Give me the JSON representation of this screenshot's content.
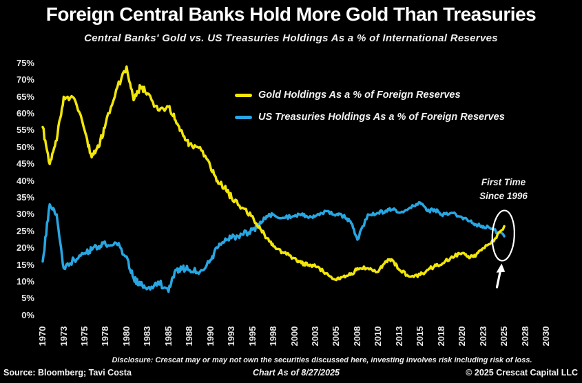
{
  "page": {
    "title": "Foreign Central Banks Hold More Gold Than Treasuries",
    "subtitle": "Central Banks' Gold vs. US Treasuries Holdings As a % of International Reserves"
  },
  "annotation": {
    "line1": "First Time",
    "line2": "Since 1996"
  },
  "footer": {
    "disclosure": "Disclosure: Crescat may or may not own the securities discussed here, investing involves risk including risk of loss.",
    "source": "Source: Bloomberg; Tavi Costa",
    "chart_as_of": "Chart As of 8/27/2025",
    "copyright": "© 2025 Crescat Capital LLC"
  },
  "colors": {
    "background": "#000000",
    "text": "#ffffff",
    "gold": "#f2e60a",
    "treasuries": "#28a6e2",
    "annotation": "#ffffff"
  },
  "chart_data": {
    "type": "line",
    "title": "Foreign Central Banks Hold More Gold Than Treasuries",
    "subtitle": "Central Banks' Gold vs. US Treasuries Holdings As a % of International Reserves",
    "grid": false,
    "legend_position": "top-center",
    "x": [
      1970,
      1971,
      1972,
      1973,
      1974,
      1975,
      1976,
      1977,
      1978,
      1979,
      1980,
      1981,
      1982,
      1983,
      1984,
      1985,
      1986,
      1987,
      1988,
      1989,
      1990,
      1991,
      1992,
      1993,
      1994,
      1995,
      1996,
      1997,
      1998,
      1999,
      2000,
      2001,
      2002,
      2003,
      2004,
      2005,
      2006,
      2007,
      2008,
      2009,
      2010,
      2011,
      2012,
      2013,
      2014,
      2015,
      2016,
      2017,
      2018,
      2019,
      2020,
      2021,
      2022,
      2023,
      2024,
      2025
    ],
    "series": [
      {
        "id": "gold",
        "name": "Gold Holdings As a % of Foreign Reserves",
        "color": "#f2e60a",
        "values": [
          56,
          45,
          52,
          65,
          64.5,
          55,
          47,
          50,
          57,
          67,
          74,
          64,
          68,
          66,
          61,
          62,
          58,
          54,
          51,
          50,
          44,
          40,
          38,
          35,
          32,
          29.5,
          26.5,
          23,
          20.5,
          18.5,
          17,
          15.5,
          15,
          14.5,
          12.5,
          10.5,
          11.5,
          12,
          14,
          14,
          13,
          16,
          16.5,
          13.5,
          11.5,
          12,
          13.5,
          14.5,
          15,
          17.5,
          18.5,
          17,
          18,
          20,
          22,
          26.5
        ]
      },
      {
        "id": "treasuries",
        "name": "US Treasuries Holdings As a % of Foreign Reserves",
        "color": "#28a6e2",
        "values": [
          16,
          33,
          30,
          14,
          16.5,
          18.5,
          19.5,
          20.5,
          21,
          21.5,
          17.5,
          11,
          9,
          8,
          10,
          7,
          13.5,
          14,
          13.5,
          13,
          16.5,
          20,
          22,
          23,
          24,
          25.5,
          27,
          29.5,
          30,
          29,
          29.5,
          30,
          29,
          29.5,
          31,
          30,
          29.5,
          28,
          22.5,
          30,
          30.5,
          31,
          31.5,
          30.5,
          32,
          33.5,
          31,
          31.5,
          30,
          30.5,
          29,
          28,
          27,
          26.5,
          25.5,
          23.5
        ]
      }
    ],
    "yaxis": {
      "min": 0,
      "max": 75,
      "tick_step": 5,
      "tick_labels": [
        "75%",
        "70%",
        "65%",
        "60%",
        "55%",
        "50%",
        "45%",
        "40%",
        "35%",
        "30%",
        "25%",
        "20%",
        "15%",
        "10%",
        "5%",
        "0%"
      ]
    },
    "xaxis": {
      "tick_years": [
        1970,
        1973,
        1975,
        1978,
        1980,
        1983,
        1985,
        1988,
        1990,
        1993,
        1995,
        1998,
        2000,
        2003,
        2005,
        2008,
        2010,
        2013,
        2015,
        2018,
        2020,
        2023,
        2025,
        2028,
        2030
      ],
      "tick_labels": [
        "1970",
        "1973",
        "1975",
        "1978",
        "1980",
        "1983",
        "1985",
        "1988",
        "1990",
        "1993",
        "1995",
        "1998",
        "2000",
        "2003",
        "2005",
        "2008",
        "2010",
        "2013",
        "2015",
        "2018",
        "2020",
        "2023",
        "2025",
        "2028",
        "2030"
      ]
    },
    "annotation": {
      "text": "First Time Since 1996",
      "target_year": 2025,
      "target_value": 25
    }
  }
}
